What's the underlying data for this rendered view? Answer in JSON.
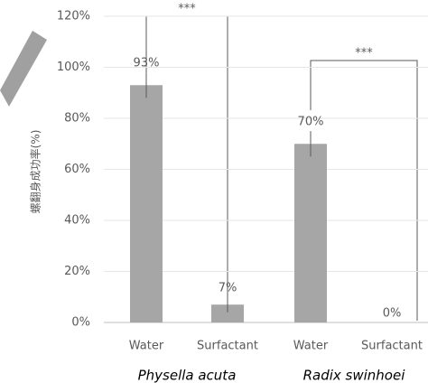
{
  "chart_data": {
    "type": "bar",
    "y_label": "螺翻身成功率(%)",
    "categories": [
      "Water",
      "Surfactant",
      "Water",
      "Surfactant"
    ],
    "values": [
      93,
      7,
      70,
      0
    ],
    "value_labels": [
      "93%",
      "7%",
      "70%",
      "0%"
    ],
    "errors": [
      5,
      3,
      5,
      0
    ],
    "groups": [
      "Physella acuta",
      "Radix swinhoei"
    ],
    "annotations": [
      "***",
      "***"
    ],
    "color": "#a6a6a6",
    "ylim": [
      0,
      120
    ],
    "yticks": [
      {
        "value": 0,
        "label": "0%"
      },
      {
        "value": 20,
        "label": "20%"
      },
      {
        "value": 40,
        "label": "40%"
      },
      {
        "value": 60,
        "label": "60%"
      },
      {
        "value": 80,
        "label": "80%"
      },
      {
        "value": 100,
        "label": "100%"
      },
      {
        "value": 120,
        "label": "120%"
      }
    ],
    "grid": true
  }
}
